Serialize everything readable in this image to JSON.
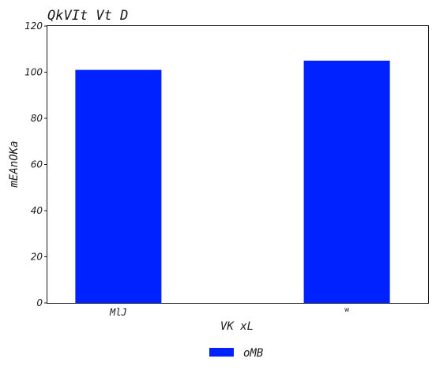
{
  "chart_data": {
    "type": "bar",
    "title": "QkVIt  Vt D",
    "xlabel": "VK xL",
    "ylabel": "mEAnOKa",
    "categories": [
      "MlJ",
      "w"
    ],
    "series": [
      {
        "name": "oMB",
        "values": [
          101,
          105
        ],
        "color": "#0022ff"
      }
    ],
    "ylim": [
      0,
      120
    ],
    "yticks": [
      0,
      20,
      40,
      60,
      80,
      100,
      120
    ],
    "grid": false,
    "legend_position": "bottom-center"
  }
}
